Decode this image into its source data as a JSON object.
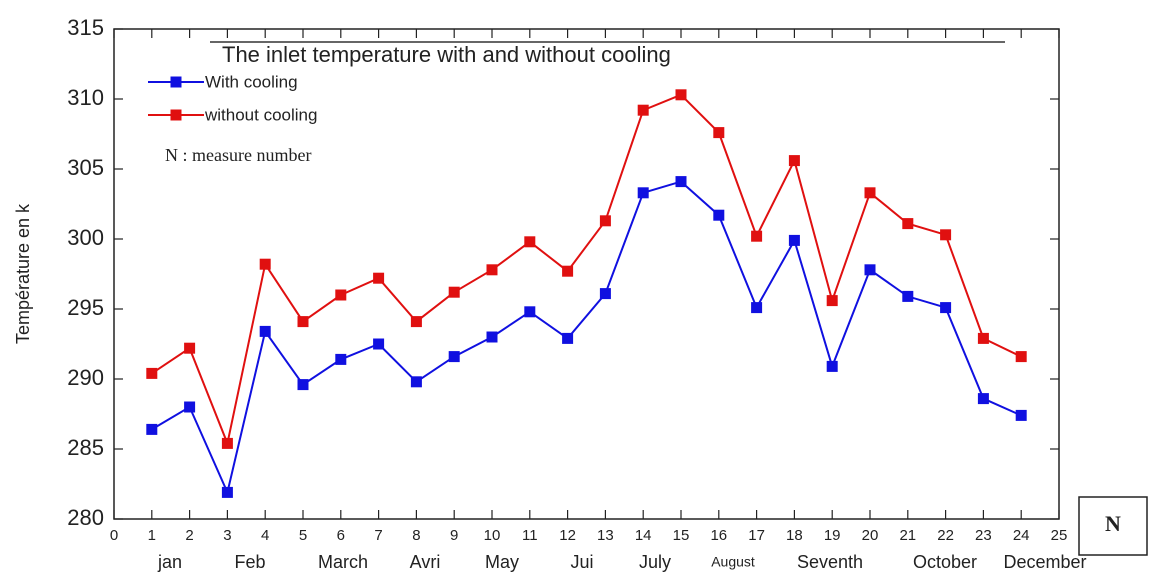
{
  "chart_data": {
    "type": "line",
    "title": "The inlet temperature with and without cooling",
    "y_label": "Température en k",
    "annotation": "N : measure number",
    "x_axis_box": "N",
    "month_labels": [
      "jan",
      "Feb",
      "March",
      "Avri",
      "May",
      "Jui",
      "July",
      "August",
      "Seventh",
      "October",
      "December"
    ],
    "x": [
      1,
      2,
      3,
      4,
      5,
      6,
      7,
      8,
      9,
      10,
      11,
      12,
      13,
      14,
      15,
      16,
      17,
      18,
      19,
      20,
      21,
      22,
      23,
      24
    ],
    "series": [
      {
        "name": "With cooling",
        "color": "#1010e0",
        "values": [
          286.4,
          288.0,
          281.9,
          293.4,
          289.6,
          291.4,
          292.5,
          289.8,
          291.6,
          293.0,
          294.8,
          292.9,
          296.1,
          303.3,
          304.1,
          301.7,
          295.1,
          299.9,
          290.9,
          297.8,
          295.9,
          295.1,
          288.6,
          287.4
        ]
      },
      {
        "name": "without cooling",
        "color": "#e01010",
        "values": [
          290.4,
          292.2,
          285.4,
          298.2,
          294.1,
          296.0,
          297.2,
          294.1,
          296.2,
          297.8,
          299.8,
          297.7,
          301.3,
          309.2,
          310.3,
          307.6,
          300.2,
          305.6,
          295.6,
          303.3,
          301.1,
          300.3,
          292.9,
          291.6
        ]
      }
    ],
    "xlim": [
      0,
      25
    ],
    "xticks": [
      0,
      1,
      2,
      3,
      4,
      5,
      6,
      7,
      8,
      9,
      10,
      11,
      12,
      13,
      14,
      15,
      16,
      17,
      18,
      19,
      20,
      21,
      22,
      23,
      24,
      25
    ],
    "ylim": [
      280,
      315
    ],
    "yticks": [
      280,
      285,
      290,
      295,
      300,
      305,
      310,
      315
    ],
    "grid": false,
    "legend": "upper left"
  }
}
